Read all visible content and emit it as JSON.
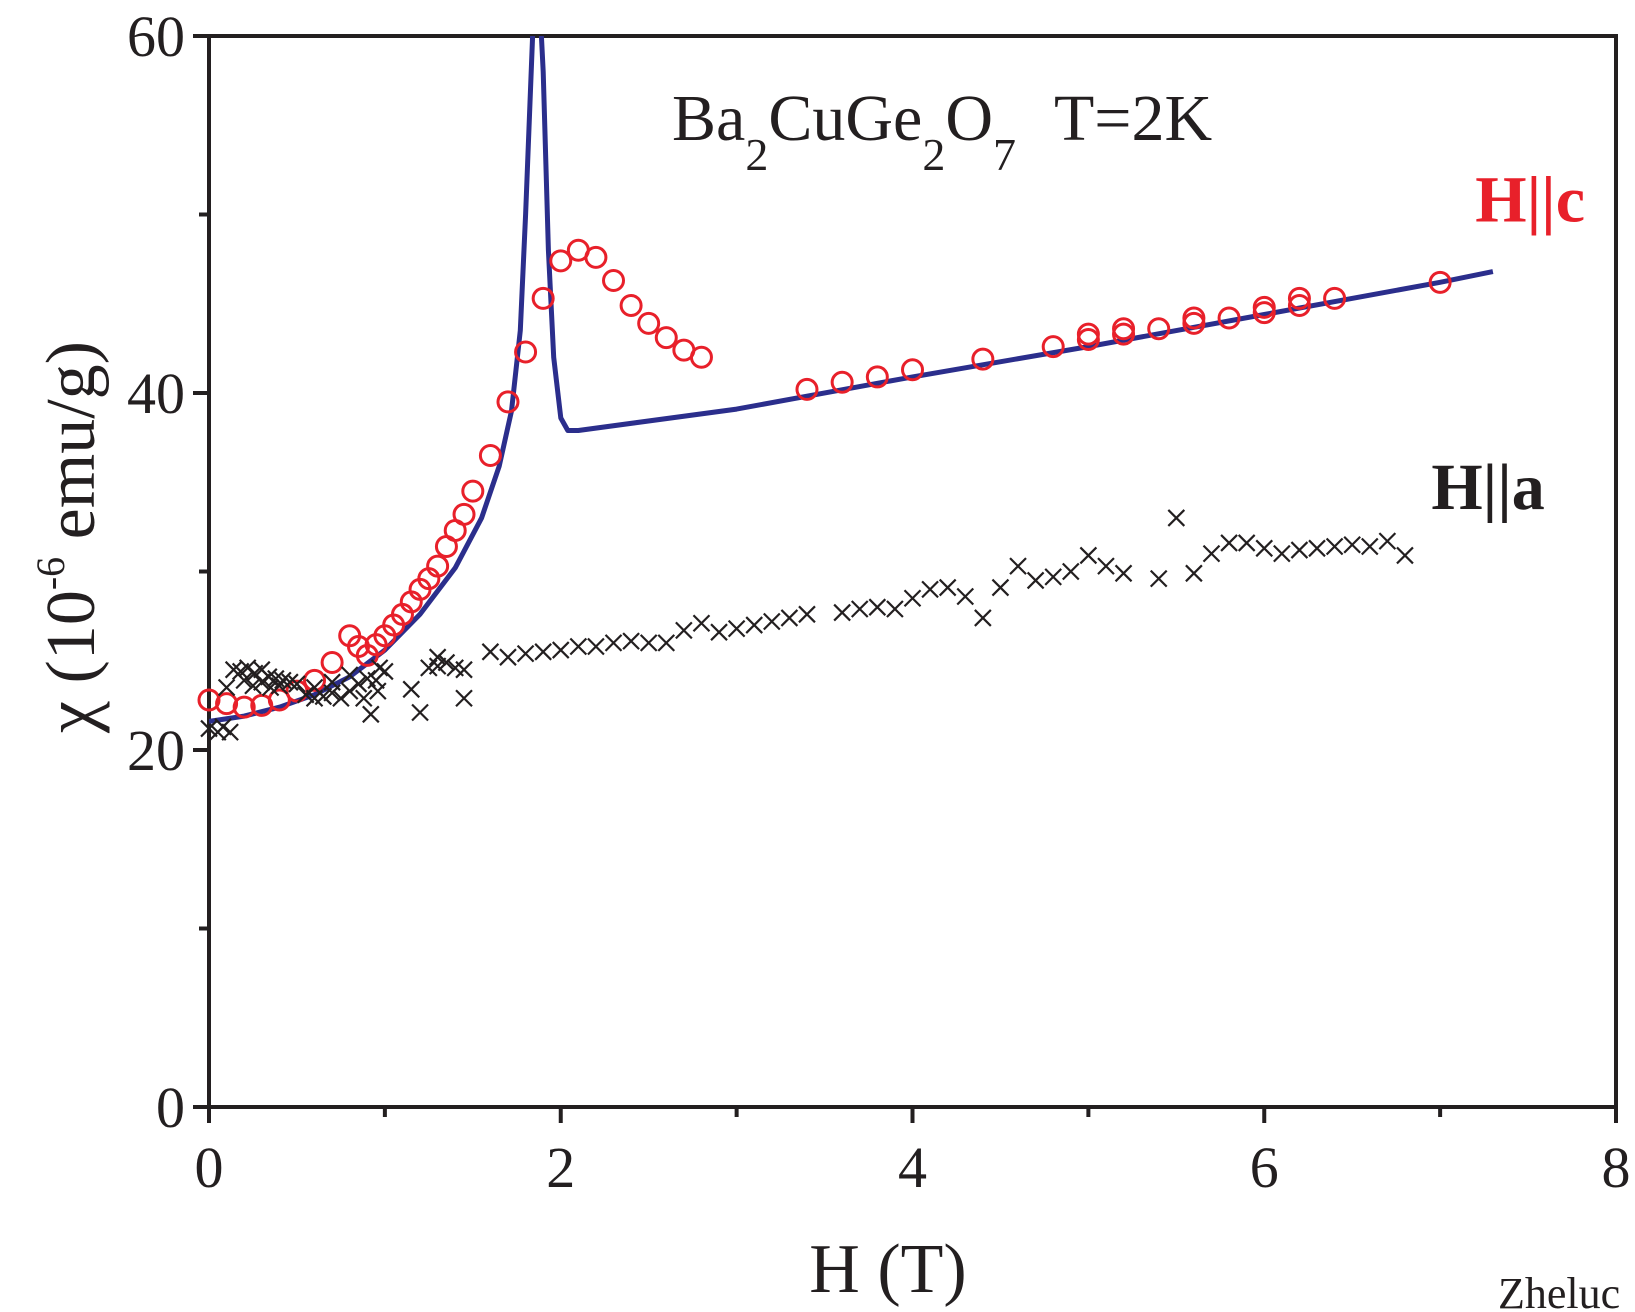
{
  "chart_data": {
    "type": "scatter",
    "title": "Ba2CuGe2O7  T=2K",
    "title_parts": {
      "ba": "Ba",
      "sub1": "2",
      "cuge": "CuGe",
      "sub2": "2",
      "o": "O",
      "sub3": "7",
      "temp": "T=2K"
    },
    "xlabel": "H (T)",
    "ylabel": {
      "chi": "χ",
      "open": " (10",
      "exp": "-6",
      "rest": " emu/g)"
    },
    "xlim": [
      0,
      8
    ],
    "ylim": [
      0,
      60
    ],
    "x_major_ticks": [
      "0",
      "2",
      "4",
      "6",
      "8"
    ],
    "y_major_ticks": [
      "0",
      "20",
      "40",
      "60"
    ],
    "x_minor_ticks": [
      1,
      3,
      5,
      7
    ],
    "y_minor_ticks": [
      10,
      30,
      50
    ],
    "footer_text": "Zheluc",
    "colors": {
      "axis": "#231f20",
      "hc": "#e8202a",
      "ha": "#231f20",
      "fit": "#2b2e8c"
    },
    "series": [
      {
        "name": "H||c",
        "marker": "open-circle",
        "color": "#e8202a",
        "label_pos": [
          7.2,
          49.6
        ],
        "points": [
          [
            0,
            22.8
          ],
          [
            0.1,
            22.6
          ],
          [
            0.2,
            22.4
          ],
          [
            0.3,
            22.5
          ],
          [
            0.4,
            22.8
          ],
          [
            0.5,
            23.3
          ],
          [
            0.6,
            23.9
          ],
          [
            0.7,
            24.9
          ],
          [
            0.8,
            26.4
          ],
          [
            0.85,
            25.8
          ],
          [
            0.9,
            25.3
          ],
          [
            0.95,
            25.9
          ],
          [
            1.0,
            26.4
          ],
          [
            1.05,
            27.0
          ],
          [
            1.1,
            27.6
          ],
          [
            1.15,
            28.3
          ],
          [
            1.2,
            29.0
          ],
          [
            1.25,
            29.6
          ],
          [
            1.3,
            30.3
          ],
          [
            1.35,
            31.4
          ],
          [
            1.4,
            32.3
          ],
          [
            1.45,
            33.2
          ],
          [
            1.5,
            34.5
          ],
          [
            1.6,
            36.5
          ],
          [
            1.7,
            39.5
          ],
          [
            1.8,
            42.3
          ],
          [
            1.9,
            45.3
          ],
          [
            2.0,
            47.4
          ],
          [
            2.1,
            48.0
          ],
          [
            2.2,
            47.6
          ],
          [
            2.3,
            46.3
          ],
          [
            2.4,
            44.9
          ],
          [
            2.5,
            43.9
          ],
          [
            2.6,
            43.1
          ],
          [
            2.7,
            42.4
          ],
          [
            2.8,
            42.0
          ],
          [
            3.4,
            40.2
          ],
          [
            3.6,
            40.6
          ],
          [
            3.8,
            40.9
          ],
          [
            4.0,
            41.3
          ],
          [
            4.4,
            41.9
          ],
          [
            4.8,
            42.6
          ],
          [
            5.0,
            43.0
          ],
          [
            5.0,
            43.3
          ],
          [
            5.2,
            43.3
          ],
          [
            5.2,
            43.6
          ],
          [
            5.4,
            43.6
          ],
          [
            5.6,
            43.9
          ],
          [
            5.6,
            44.2
          ],
          [
            5.8,
            44.2
          ],
          [
            6.0,
            44.5
          ],
          [
            6.0,
            44.8
          ],
          [
            6.2,
            44.9
          ],
          [
            6.2,
            45.3
          ],
          [
            6.4,
            45.3
          ],
          [
            7.0,
            46.2
          ]
        ]
      },
      {
        "name": "H||a",
        "marker": "x",
        "color": "#231f20",
        "label_pos": [
          6.95,
          33.5
        ],
        "points": [
          [
            0.0,
            21.2
          ],
          [
            0.05,
            21.0
          ],
          [
            0.08,
            21.3
          ],
          [
            0.12,
            21.0
          ],
          [
            0.1,
            23.5
          ],
          [
            0.14,
            24.5
          ],
          [
            0.18,
            24.4
          ],
          [
            0.22,
            24.6
          ],
          [
            0.26,
            24.3
          ],
          [
            0.3,
            24.5
          ],
          [
            0.34,
            24.1
          ],
          [
            0.38,
            24.0
          ],
          [
            0.42,
            23.9
          ],
          [
            0.46,
            23.8
          ],
          [
            0.5,
            23.7
          ],
          [
            0.2,
            23.9
          ],
          [
            0.25,
            23.6
          ],
          [
            0.3,
            23.8
          ],
          [
            0.35,
            23.5
          ],
          [
            0.4,
            23.6
          ],
          [
            0.55,
            23.1
          ],
          [
            0.6,
            22.9
          ],
          [
            0.65,
            23.0
          ],
          [
            0.7,
            23.2
          ],
          [
            0.75,
            22.9
          ],
          [
            0.8,
            23.3
          ],
          [
            0.6,
            23.5
          ],
          [
            0.7,
            23.8
          ],
          [
            0.8,
            24.2
          ],
          [
            0.85,
            23.7
          ],
          [
            0.9,
            24.0
          ],
          [
            0.95,
            23.9
          ],
          [
            0.88,
            22.9
          ],
          [
            0.92,
            22.0
          ],
          [
            0.96,
            23.3
          ],
          [
            1.0,
            24.4
          ],
          [
            0.97,
            24.6
          ],
          [
            1.2,
            22.1
          ],
          [
            1.15,
            23.4
          ],
          [
            1.25,
            24.6
          ],
          [
            1.3,
            24.7
          ],
          [
            1.35,
            24.9
          ],
          [
            1.4,
            24.6
          ],
          [
            1.45,
            24.5
          ],
          [
            1.45,
            22.9
          ],
          [
            1.3,
            25.2
          ],
          [
            1.6,
            25.5
          ],
          [
            1.7,
            25.2
          ],
          [
            1.8,
            25.4
          ],
          [
            1.9,
            25.5
          ],
          [
            2.0,
            25.6
          ],
          [
            2.1,
            25.8
          ],
          [
            2.2,
            25.8
          ],
          [
            2.3,
            26.0
          ],
          [
            2.4,
            26.1
          ],
          [
            2.5,
            26.0
          ],
          [
            2.6,
            26.0
          ],
          [
            2.7,
            26.7
          ],
          [
            2.8,
            27.1
          ],
          [
            2.9,
            26.6
          ],
          [
            3.0,
            26.8
          ],
          [
            3.1,
            27.0
          ],
          [
            3.2,
            27.2
          ],
          [
            3.3,
            27.4
          ],
          [
            3.4,
            27.6
          ],
          [
            3.6,
            27.7
          ],
          [
            3.7,
            27.9
          ],
          [
            3.8,
            28.0
          ],
          [
            3.9,
            27.9
          ],
          [
            4.0,
            28.5
          ],
          [
            4.1,
            29.0
          ],
          [
            4.2,
            29.1
          ],
          [
            4.3,
            28.6
          ],
          [
            4.4,
            27.4
          ],
          [
            4.5,
            29.1
          ],
          [
            4.6,
            30.3
          ],
          [
            4.7,
            29.5
          ],
          [
            4.8,
            29.7
          ],
          [
            4.9,
            30.0
          ],
          [
            5.0,
            30.9
          ],
          [
            5.1,
            30.3
          ],
          [
            5.2,
            29.9
          ],
          [
            5.4,
            29.6
          ],
          [
            5.5,
            33.0
          ],
          [
            5.6,
            29.9
          ],
          [
            5.7,
            31.0
          ],
          [
            5.8,
            31.6
          ],
          [
            5.9,
            31.6
          ],
          [
            6.0,
            31.3
          ],
          [
            6.1,
            31.0
          ],
          [
            6.2,
            31.2
          ],
          [
            6.3,
            31.3
          ],
          [
            6.4,
            31.4
          ],
          [
            6.5,
            31.5
          ],
          [
            6.6,
            31.4
          ],
          [
            6.7,
            31.7
          ],
          [
            6.8,
            30.9
          ]
        ]
      },
      {
        "name": "fit",
        "marker": "line",
        "color": "#2b2e8c",
        "points": [
          [
            0,
            21.6
          ],
          [
            0.2,
            21.9
          ],
          [
            0.4,
            22.4
          ],
          [
            0.6,
            23.1
          ],
          [
            0.8,
            24.1
          ],
          [
            1.0,
            25.6
          ],
          [
            1.2,
            27.6
          ],
          [
            1.4,
            30.2
          ],
          [
            1.55,
            33.0
          ],
          [
            1.65,
            35.9
          ],
          [
            1.72,
            39.0
          ],
          [
            1.77,
            43.5
          ],
          [
            1.8,
            50.0
          ],
          [
            1.82,
            55.0
          ],
          [
            1.84,
            60.0
          ],
          [
            1.88,
            62.0
          ],
          [
            1.9,
            58.0
          ],
          [
            1.93,
            48.0
          ],
          [
            1.96,
            42.0
          ],
          [
            2.0,
            38.6
          ],
          [
            2.04,
            37.9
          ],
          [
            2.1,
            37.9
          ],
          [
            3.0,
            39.1
          ],
          [
            4.0,
            40.9
          ],
          [
            5.0,
            42.6
          ],
          [
            6.0,
            44.4
          ],
          [
            7.0,
            46.2
          ],
          [
            7.3,
            46.8
          ]
        ]
      }
    ]
  }
}
